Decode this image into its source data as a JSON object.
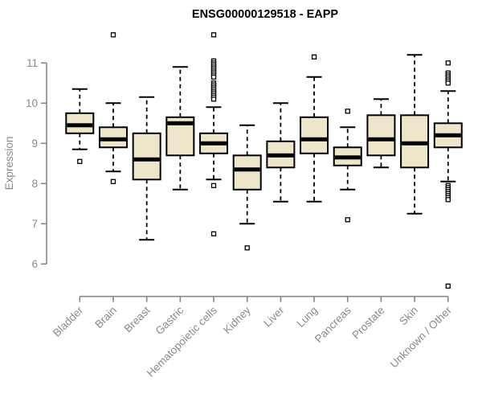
{
  "chart_data": {
    "type": "boxplot",
    "title": "ENSG00000129518 - EAPP",
    "ylabel": "Expression",
    "xlabel": "",
    "ylim": [
      5.2,
      11.9
    ],
    "yticks": [
      6,
      7,
      8,
      9,
      10,
      11
    ],
    "grid": false,
    "legend": "none",
    "colors": {
      "box_fill": "#EDE6CA",
      "box_border": "#000000",
      "median": "#000000",
      "whisker": "#000000",
      "outlier_stroke": "#000000",
      "outlier_fill": "#ffffff",
      "axis": "#878787",
      "tick_label": "#8a8a8a",
      "title": "#000000",
      "background": "#ffffff"
    },
    "categories": [
      "Bladder",
      "Brain",
      "Breast",
      "Gastric",
      "Hematopoietic cells",
      "Kidney",
      "Liver",
      "Lung",
      "Pancreas",
      "Prostate",
      "Skin",
      "Unknown / Other"
    ],
    "series": [
      {
        "label": "Bladder",
        "whisker_low": 8.85,
        "q1": 9.25,
        "median": 9.45,
        "q3": 9.75,
        "whisker_high": 10.35,
        "outliers": [
          8.55
        ]
      },
      {
        "label": "Brain",
        "whisker_low": 8.3,
        "q1": 8.9,
        "median": 9.1,
        "q3": 9.4,
        "whisker_high": 10.0,
        "outliers": [
          11.7,
          8.05
        ]
      },
      {
        "label": "Breast",
        "whisker_low": 6.6,
        "q1": 8.1,
        "median": 8.6,
        "q3": 9.25,
        "whisker_high": 10.15,
        "outliers": []
      },
      {
        "label": "Gastric",
        "whisker_low": 7.85,
        "q1": 8.7,
        "median": 9.5,
        "q3": 9.65,
        "whisker_high": 10.9,
        "outliers": []
      },
      {
        "label": "Hematopoietic cells",
        "whisker_low": 8.1,
        "q1": 8.75,
        "median": 9.0,
        "q3": 9.25,
        "whisker_high": 9.9,
        "outliers": [
          11.7,
          11.05,
          11.0,
          10.95,
          10.9,
          10.85,
          10.8,
          10.75,
          10.7,
          10.65,
          10.5,
          10.45,
          10.4,
          10.35,
          10.3,
          10.25,
          10.2,
          10.15,
          10.1,
          7.95,
          6.75
        ]
      },
      {
        "label": "Kidney",
        "whisker_low": 7.0,
        "q1": 7.85,
        "median": 8.35,
        "q3": 8.7,
        "whisker_high": 9.45,
        "outliers": [
          6.4
        ]
      },
      {
        "label": "Liver",
        "whisker_low": 7.55,
        "q1": 8.4,
        "median": 8.7,
        "q3": 9.05,
        "whisker_high": 10.0,
        "outliers": []
      },
      {
        "label": "Lung",
        "whisker_low": 7.55,
        "q1": 8.75,
        "median": 9.1,
        "q3": 9.65,
        "whisker_high": 10.65,
        "outliers": [
          11.15
        ]
      },
      {
        "label": "Pancreas",
        "whisker_low": 7.85,
        "q1": 8.45,
        "median": 8.65,
        "q3": 8.9,
        "whisker_high": 9.4,
        "outliers": [
          9.8,
          7.1
        ]
      },
      {
        "label": "Prostate",
        "whisker_low": 8.4,
        "q1": 8.7,
        "median": 9.1,
        "q3": 9.7,
        "whisker_high": 10.1,
        "outliers": []
      },
      {
        "label": "Skin",
        "whisker_low": 7.25,
        "q1": 8.4,
        "median": 9.0,
        "q3": 9.7,
        "whisker_high": 11.2,
        "outliers": []
      },
      {
        "label": "Unknown / Other",
        "whisker_low": 8.05,
        "q1": 8.9,
        "median": 9.2,
        "q3": 9.5,
        "whisker_high": 10.3,
        "outliers": [
          11.0,
          10.75,
          10.7,
          10.65,
          10.6,
          10.55,
          10.5,
          7.95,
          7.9,
          7.85,
          7.8,
          7.75,
          7.7,
          7.65,
          7.6,
          5.45
        ]
      }
    ]
  }
}
